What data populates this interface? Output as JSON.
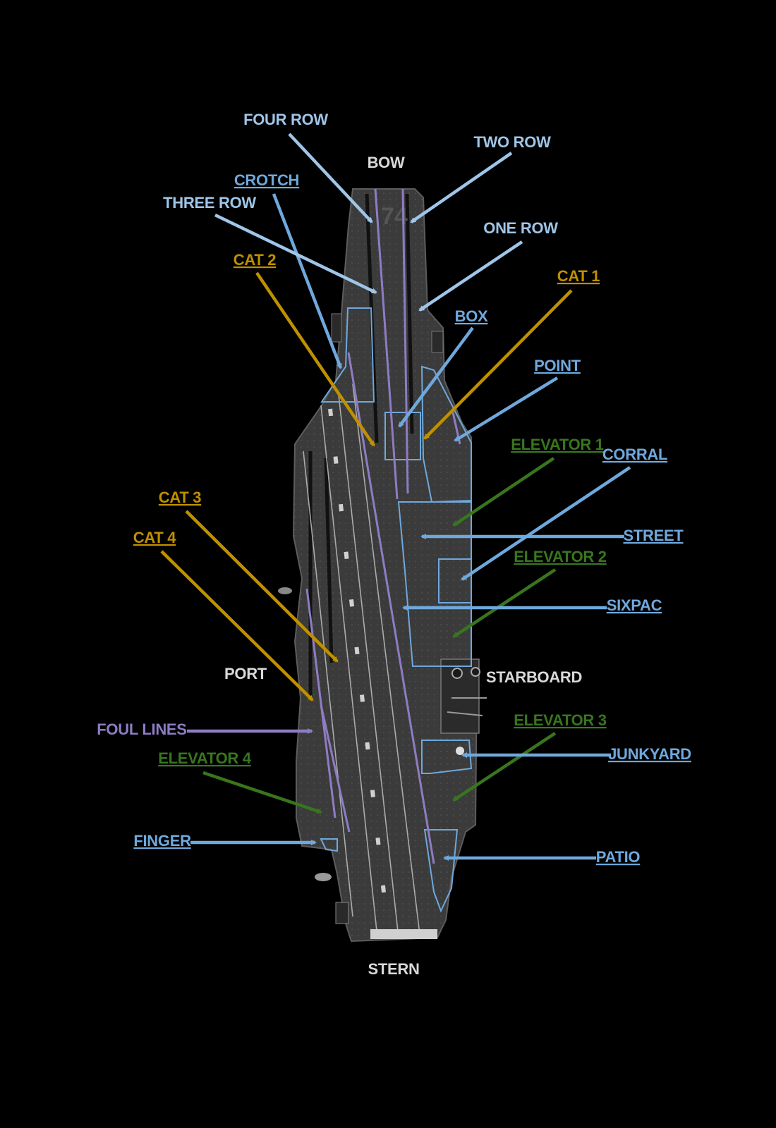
{
  "orientation": {
    "bow": "BOW",
    "stern": "STERN",
    "port": "PORT",
    "starboard": "STARBOARD"
  },
  "colors": {
    "background": "#000000",
    "deck": "#3a3a3a",
    "blue": "#6fa8dc",
    "light_blue": "#9fc5e8",
    "gold": "#bf9000",
    "green": "#38761d",
    "purple": "#8e7cc3",
    "neutral_label": "#d9d9d9"
  },
  "labels": {
    "four_row": "FOUR ROW",
    "two_row": "TWO ROW",
    "crotch": "CROTCH",
    "three_row": "THREE ROW",
    "one_row": "ONE ROW",
    "cat_2": "CAT 2",
    "cat_1": "CAT 1",
    "box": "BOX",
    "point": "POINT",
    "elevator_1": "ELEVATOR 1",
    "corral": "CORRAL",
    "street": "STREET",
    "cat_3": "CAT 3",
    "cat_4": "CAT 4",
    "elevator_2": "ELEVATOR 2",
    "sixpac": "SIXPAC",
    "foul_lines": "FOUL LINES",
    "elevator_3": "ELEVATOR 3",
    "junkyard": "JUNKYARD",
    "elevator_4": "ELEVATOR 4",
    "finger": "FINGER",
    "patio": "PATIO"
  }
}
